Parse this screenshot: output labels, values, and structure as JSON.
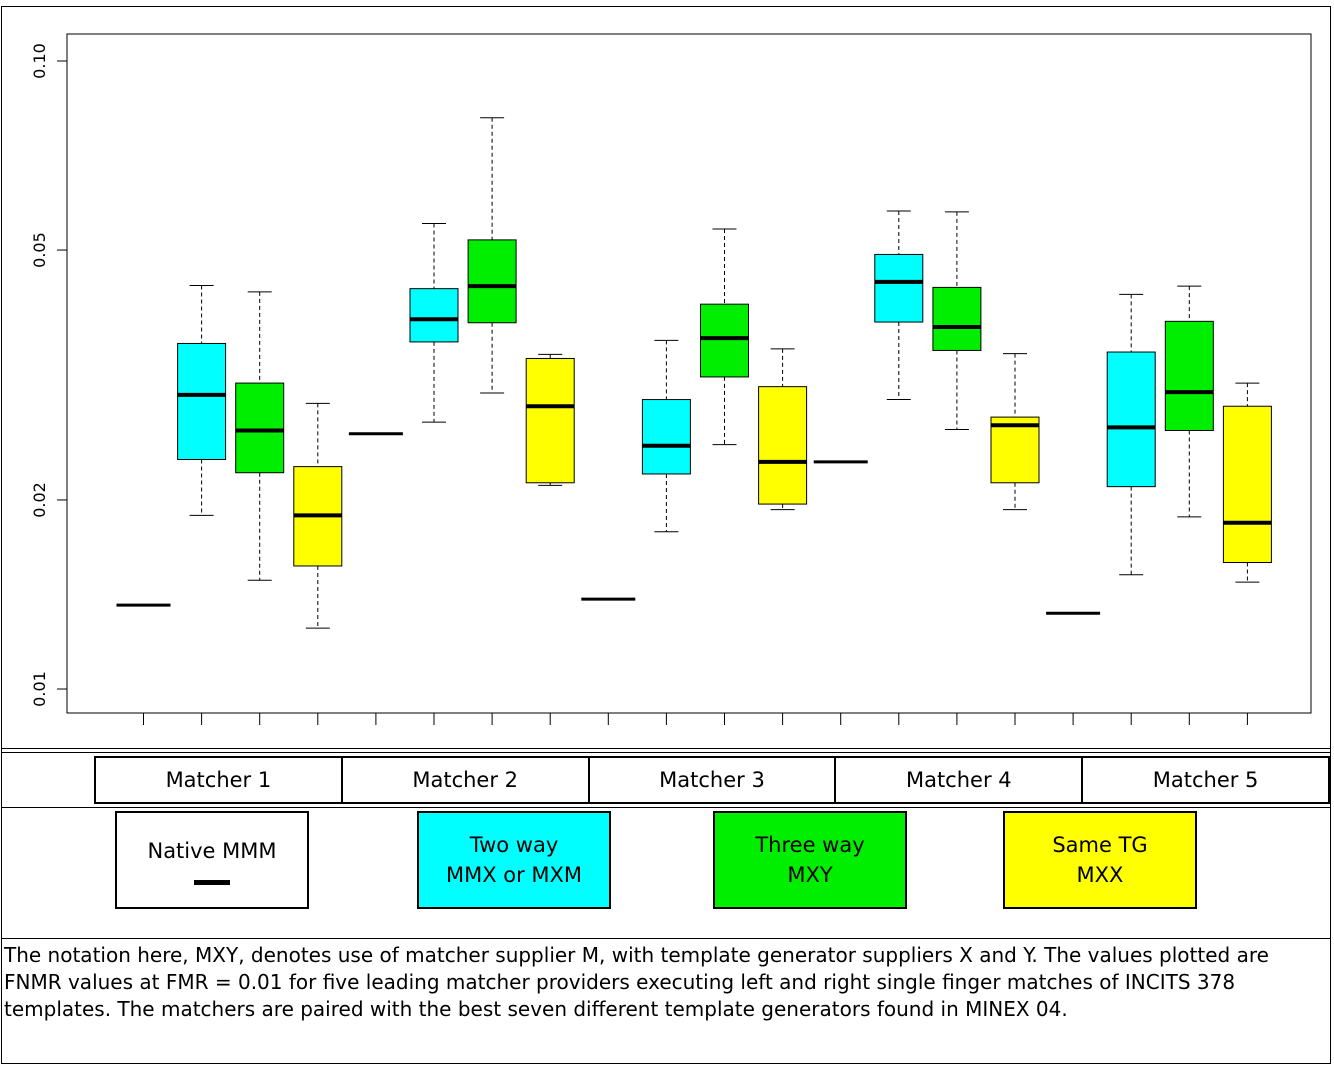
{
  "chart_data": {
    "type": "boxplot",
    "yscale": "log",
    "ylim": [
      0.009,
      0.13
    ],
    "yticks": [
      0.01,
      0.02,
      0.05,
      0.1
    ],
    "ytick_labels": [
      "0.01",
      "0.02",
      "0.05",
      "0.10"
    ],
    "groups": [
      {
        "name": "Matcher 1",
        "native": 0.0136,
        "boxes": [
          {
            "type": "Two way",
            "whisker_low": 0.0189,
            "q1": 0.0232,
            "median": 0.0294,
            "q3": 0.0355,
            "whisker_high": 0.0439
          },
          {
            "type": "Three way",
            "whisker_low": 0.0149,
            "q1": 0.0221,
            "median": 0.0258,
            "q3": 0.0307,
            "whisker_high": 0.0429
          },
          {
            "type": "Same TG",
            "whisker_low": 0.0125,
            "q1": 0.0157,
            "median": 0.0189,
            "q3": 0.0226,
            "whisker_high": 0.0285
          }
        ]
      },
      {
        "name": "Matcher 2",
        "native": 0.0255,
        "boxes": [
          {
            "type": "Two way",
            "whisker_low": 0.0266,
            "q1": 0.0357,
            "median": 0.0388,
            "q3": 0.0434,
            "whisker_high": 0.0551
          },
          {
            "type": "Three way",
            "whisker_low": 0.0296,
            "q1": 0.0383,
            "median": 0.0438,
            "q3": 0.0519,
            "whisker_high": 0.0812
          }
        ],
        "extra_boxes": [
          {
            "type": "Same TG",
            "whisker_low": 0.0211,
            "q1": 0.0213,
            "median": 0.0282,
            "q3": 0.0336,
            "whisker_high": 0.0341
          }
        ]
      },
      {
        "name": "Matcher 3",
        "native": 0.0139,
        "boxes": [
          {
            "type": "Two way",
            "whisker_low": 0.0178,
            "q1": 0.022,
            "median": 0.0244,
            "q3": 0.0289,
            "whisker_high": 0.0359
          },
          {
            "type": "Three way",
            "whisker_low": 0.0245,
            "q1": 0.0314,
            "median": 0.0362,
            "q3": 0.041,
            "whisker_high": 0.054
          },
          {
            "type": "Same TG",
            "whisker_low": 0.0193,
            "q1": 0.0197,
            "median": 0.023,
            "q3": 0.0303,
            "whisker_high": 0.0348
          }
        ]
      },
      {
        "name": "Matcher 4",
        "native": 0.023,
        "boxes": [
          {
            "type": "Two way",
            "whisker_low": 0.0289,
            "q1": 0.0384,
            "median": 0.0445,
            "q3": 0.0492,
            "whisker_high": 0.0577
          },
          {
            "type": "Three way",
            "whisker_low": 0.0259,
            "q1": 0.0346,
            "median": 0.0377,
            "q3": 0.0436,
            "whisker_high": 0.0575
          },
          {
            "type": "Same TG",
            "whisker_low": 0.0193,
            "q1": 0.0213,
            "median": 0.0263,
            "q3": 0.0271,
            "whisker_high": 0.0342
          }
        ]
      },
      {
        "name": "Matcher 5",
        "native": 0.0132,
        "boxes": [
          {
            "type": "Two way",
            "whisker_low": 0.0152,
            "q1": 0.021,
            "median": 0.0261,
            "q3": 0.0344,
            "whisker_high": 0.0425
          },
          {
            "type": "Three way",
            "whisker_low": 0.0188,
            "q1": 0.0258,
            "median": 0.0297,
            "q3": 0.0385,
            "whisker_high": 0.0438
          },
          {
            "type": "Same TG",
            "whisker_low": 0.0148,
            "q1": 0.0159,
            "median": 0.0184,
            "q3": 0.0282,
            "whisker_high": 0.0307
          }
        ]
      }
    ],
    "colors": {
      "Two way": "#00ffff",
      "Three way": "#00ee00",
      "Same TG": "#ffff00",
      "native": "#000000"
    }
  },
  "matchers": [
    "Matcher 1",
    "Matcher 2",
    "Matcher 3",
    "Matcher 4",
    "Matcher 5"
  ],
  "legend": {
    "native": {
      "line1": "Native MMM"
    },
    "two_way": {
      "line1": "Two way",
      "line2": "MMX or MXM"
    },
    "three_way": {
      "line1": "Three way",
      "line2": "MXY"
    },
    "same_tg": {
      "line1": "Same TG",
      "line2": "MXX"
    }
  },
  "caption": "The notation here, MXY, denotes use of matcher supplier M, with template generator suppliers X and Y.   The values plotted are FNMR values at FMR = 0.01 for five leading matcher providers executing left and right single finger matches of INCITS 378 templates.  The matchers are paired with the best seven different template generators found in MINEX 04."
}
